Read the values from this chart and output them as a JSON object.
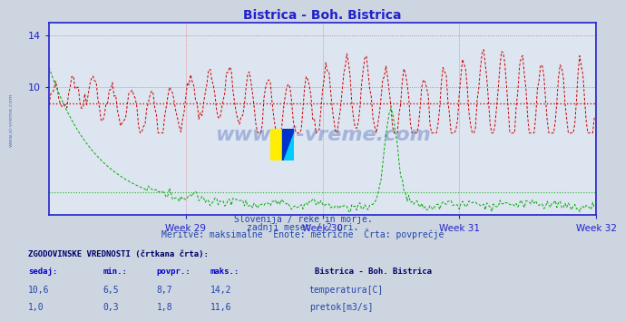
{
  "title": "Bistrica - Boh. Bistrica",
  "bg_color": "#ccd5e0",
  "plot_bg_color": "#dde5f0",
  "title_color": "#2222cc",
  "axis_color": "#2222cc",
  "grid_color": "#cc0000",
  "grid_alpha": 0.5,
  "week_labels": [
    "Week 29",
    "Week 30",
    "Week 31",
    "Week 32"
  ],
  "ylim_temp": [
    0,
    15
  ],
  "yticks": [
    10,
    14
  ],
  "n_points": 336,
  "temp_avg": 8.7,
  "temp_min": 6.5,
  "temp_max": 14.2,
  "temp_current": 10.6,
  "flow_avg": 1.8,
  "flow_min": 0.3,
  "flow_max": 11.6,
  "flow_current": 1.0,
  "temp_color": "#cc0000",
  "flow_color": "#00aa00",
  "watermark": "www.si-vreme.com",
  "subtitle1": "Slovenija / reke in morje.",
  "subtitle2": "zadnji mesec / 2 uri.",
  "subtitle3": "Meritve: maksimalne  Enote: metrične  Črta: povprečje",
  "legend_title": "ZGODOVINSKE VREDNOSTI (črtkana črta):",
  "col_sedaj": "sedaj:",
  "col_min": "min.:",
  "col_povpr": "povpr.:",
  "col_maks": "maks.:",
  "station_name": "Bistrica - Boh. Bistrica",
  "row1_label": "temperatura[C]",
  "row2_label": "pretok[m3/s]",
  "temp_icon_color": "#cc0000",
  "flow_icon_color": "#00aa00"
}
